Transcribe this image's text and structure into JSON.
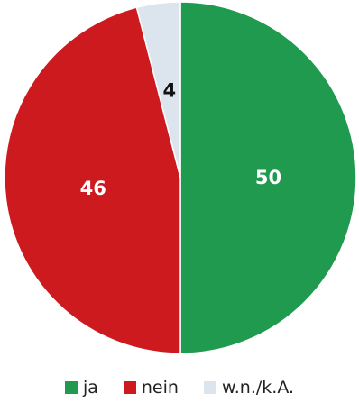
{
  "chart_data": {
    "type": "pie",
    "categories": [
      "ja",
      "nein",
      "w.n./k.A."
    ],
    "values": [
      50,
      46,
      4
    ],
    "colors": [
      "#1f9a4e",
      "#cc1a1e",
      "#dce4ee"
    ],
    "label_colors": [
      "#ffffff",
      "#ffffff",
      "#111111"
    ],
    "data_labels": [
      "50",
      "46",
      "4"
    ],
    "start_angle": "12 o'clock",
    "direction": "clockwise",
    "legend_position": "bottom"
  }
}
